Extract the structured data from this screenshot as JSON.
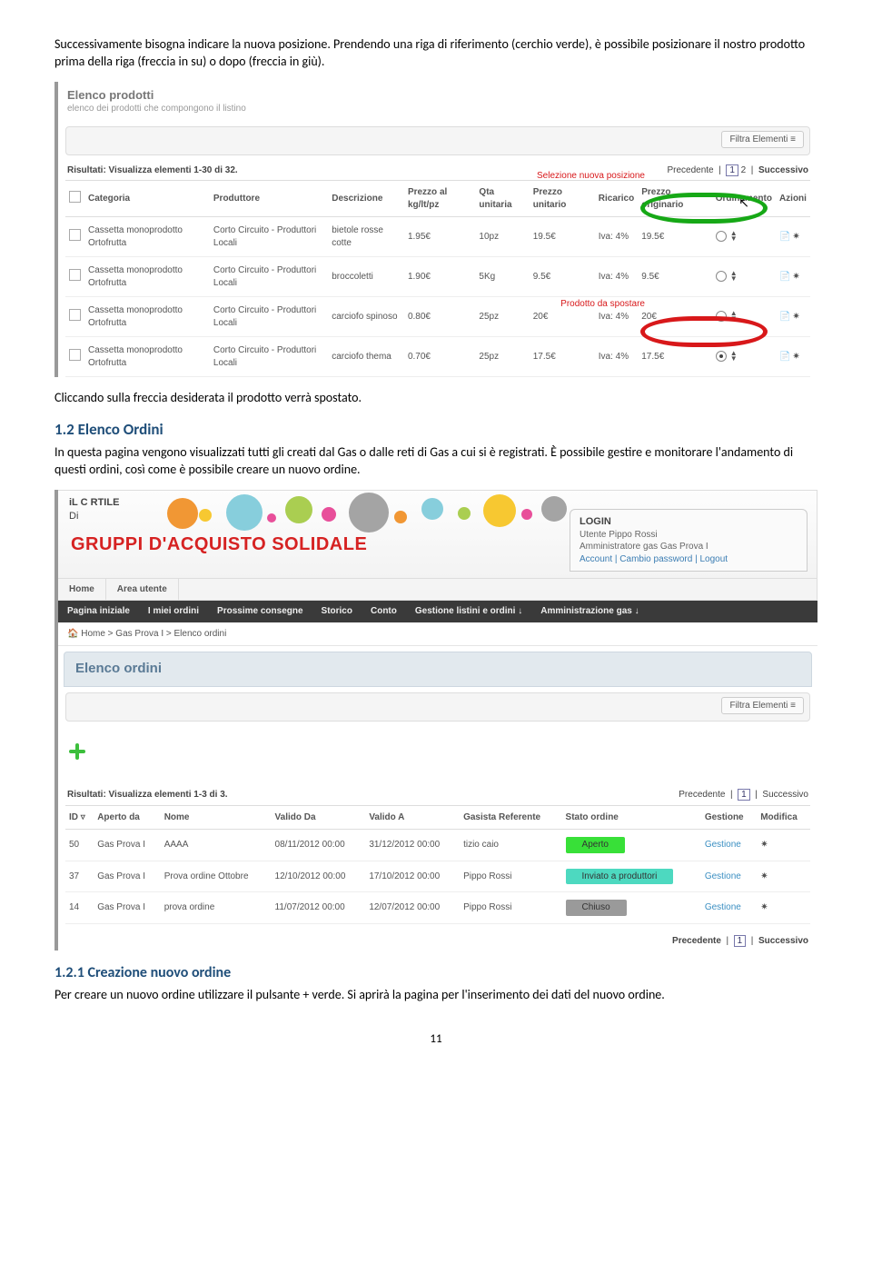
{
  "intro_text": "Successivamente bisogna indicare la nuova posizione. Prendendo una riga di riferimento (cerchio verde), è possibile posizionare il nostro prodotto prima della riga (freccia in su) o dopo (freccia in giù).",
  "post_shot1_text": "Cliccando sulla freccia desiderata il prodotto verrà spostato.",
  "heading_12": "1.2   Elenco Ordini",
  "body_12": "In questa pagina vengono visualizzati tutti gli creati dal Gas o dalle reti di Gas a cui si è registrati. È possibile gestire e monitorare l'andamento di questi ordini, così come è possibile creare un nuovo ordine.",
  "heading_121": "1.2.1   Creazione nuovo ordine",
  "body_121": "Per creare un nuovo ordine utilizzare il pulsante + verde. Si aprirà la pagina per l'inserimento dei dati del nuovo ordine.",
  "page_number": "11",
  "shot1": {
    "title": "Elenco prodotti",
    "subtitle": "elenco dei prodotti che compongono il listino",
    "filter_label": "Filtra Elementi",
    "results": "Risultati: Visualizza elementi 1-30 di 32.",
    "pager_prev": "Precedente",
    "pager_next": "Successivo",
    "page1": "1",
    "page2": "2",
    "annot_green": "Selezione nuova posizione",
    "annot_red": "Prodotto da spostare",
    "cols": {
      "categoria": "Categoria",
      "produttore": "Produttore",
      "descrizione": "Descrizione",
      "prezzo_kg": "Prezzo al kg/lt/pz",
      "qta": "Qta unitaria",
      "prezzo_unit": "Prezzo unitario",
      "ricarico": "Ricarico",
      "prezzo_orig": "Prezzo originario",
      "ordinamento": "Ordinamento",
      "azioni": "Azioni"
    },
    "row_common": {
      "categoria": "Cassetta monoprodotto Ortofrutta",
      "produttore": "Corto Circuito - Produttori Locali",
      "ricarico": "Iva: 4%"
    },
    "rows": [
      {
        "descr": "bietole rosse cotte",
        "kg": "1.95€",
        "qta": "10pz",
        "unit": "19.5€",
        "orig": "19.5€",
        "radio_on": false,
        "highlight": "green"
      },
      {
        "descr": "broccoletti",
        "kg": "1.90€",
        "qta": "5Kg",
        "unit": "9.5€",
        "orig": "9.5€",
        "radio_on": false,
        "highlight": ""
      },
      {
        "descr": "carciofo spinoso",
        "kg": "0.80€",
        "qta": "25pz",
        "unit": "20€",
        "orig": "20€",
        "radio_on": false,
        "highlight": ""
      },
      {
        "descr": "carciofo thema",
        "kg": "0.70€",
        "qta": "25pz",
        "unit": "17.5€",
        "orig": "17.5€",
        "radio_on": true,
        "highlight": "red"
      }
    ],
    "annot_colors": {
      "green": "#16a816",
      "red": "#d8181a",
      "green_text": "#d8181a"
    }
  },
  "shot2": {
    "logo_line1": "iL C  RTILE",
    "logo_line2": "Di",
    "brand": "GRUPPI D'ACQUISTO SOLIDALE",
    "login": {
      "title": "LOGIN",
      "l1": "Utente Pippo Rossi",
      "l2": "Amministratore gas Gas Prova I",
      "links": "Account | Cambio password | Logout"
    },
    "tabs": {
      "home": "Home",
      "area": "Area utente"
    },
    "subnav": {
      "a": "Pagina iniziale",
      "b": "I miei ordini",
      "c": "Prossime consegne",
      "d": "Storico",
      "e": "Conto",
      "f": "Gestione listini e ordini ↓",
      "g": "Amministrazione gas ↓"
    },
    "breadcrumb": "🏠 Home > Gas Prova I > Elenco ordini",
    "panel_title": "Elenco ordini",
    "filter_label": "Filtra Elementi",
    "results": "Risultati: Visualizza elementi 1-3 di 3.",
    "pager_prev": "Precedente",
    "pager_next": "Successivo",
    "page1": "1",
    "cols": {
      "id": "ID ▿",
      "aperto": "Aperto da",
      "nome": "Nome",
      "valido_da": "Valido Da",
      "valido_a": "Valido A",
      "ref": "Gasista Referente",
      "stato": "Stato ordine",
      "gestione": "Gestione",
      "modifica": "Modifica"
    },
    "rows": [
      {
        "id": "50",
        "aperto": "Gas Prova I",
        "nome": "AAAA",
        "da": "08/11/2012 00:00",
        "a": "31/12/2012 00:00",
        "ref": "tizio caio",
        "stato": "Aperto",
        "stato_color": "#38e038",
        "gestione": "Gestione"
      },
      {
        "id": "37",
        "aperto": "Gas Prova I",
        "nome": "Prova ordine Ottobre",
        "da": "12/10/2012 00:00",
        "a": "17/10/2012 00:00",
        "ref": "Pippo Rossi",
        "stato": "Inviato a produttori",
        "stato_color": "#4dd9c0",
        "gestione": "Gestione"
      },
      {
        "id": "14",
        "aperto": "Gas Prova I",
        "nome": "prova ordine",
        "da": "11/07/2012 00:00",
        "a": "12/07/2012 00:00",
        "ref": "Pippo Rossi",
        "stato": "Chiuso",
        "stato_color": "#9a9a9a",
        "gestione": "Gestione"
      }
    ],
    "bubbles": [
      {
        "l": 120,
        "t": 8,
        "s": 34,
        "c": "#f08c1e"
      },
      {
        "l": 155,
        "t": 20,
        "s": 14,
        "c": "#f6c21b"
      },
      {
        "l": 185,
        "t": 4,
        "s": 40,
        "c": "#7ac9d8"
      },
      {
        "l": 230,
        "t": 25,
        "s": 10,
        "c": "#e53c8f"
      },
      {
        "l": 250,
        "t": 6,
        "s": 30,
        "c": "#a1c93e"
      },
      {
        "l": 290,
        "t": 18,
        "s": 16,
        "c": "#e53c8f"
      },
      {
        "l": 320,
        "t": 2,
        "s": 44,
        "c": "#9a9a9a"
      },
      {
        "l": 370,
        "t": 22,
        "s": 14,
        "c": "#f08c1e"
      },
      {
        "l": 400,
        "t": 8,
        "s": 24,
        "c": "#7ac9d8"
      },
      {
        "l": 440,
        "t": 18,
        "s": 14,
        "c": "#a1c93e"
      },
      {
        "l": 468,
        "t": 4,
        "s": 36,
        "c": "#f6c21b"
      },
      {
        "l": 510,
        "t": 20,
        "s": 12,
        "c": "#e53c8f"
      },
      {
        "l": 532,
        "t": 6,
        "s": 28,
        "c": "#9a9a9a"
      }
    ]
  }
}
